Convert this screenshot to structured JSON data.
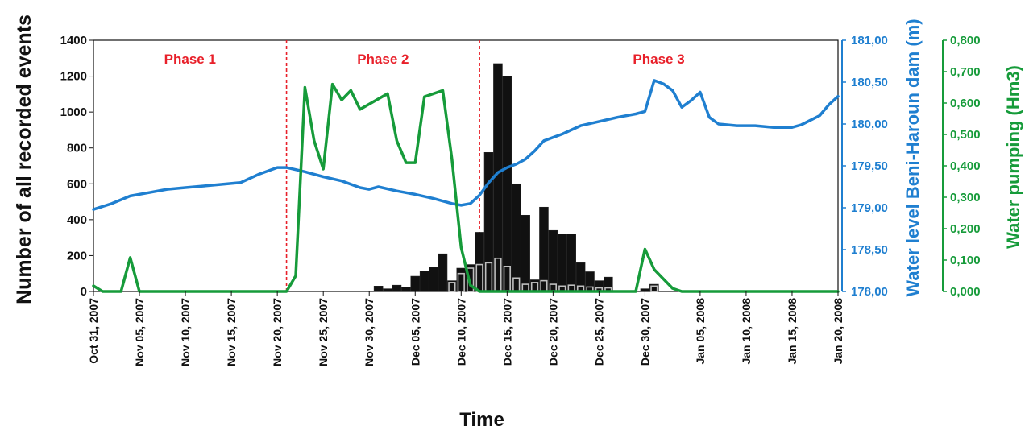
{
  "chart_data": {
    "type": "bar+line",
    "xlabel": "Time",
    "ylabel_left": "Number of all recorded events",
    "ylabel_right_1": "Water level Beni-Haroun dam (m)",
    "ylabel_right_2": "Water pumping (Hm3)",
    "colors": {
      "bars_all": "#111111",
      "bars_secondary": "#ffffff",
      "water_level": "#1f7fd0",
      "pumping": "#169b3a",
      "phase_divider": "#e8202a",
      "axis": "#111111"
    },
    "x_range_dates": [
      "2007-10-31",
      "2008-01-20"
    ],
    "x_tick_labels": [
      "Oct 31, 2007",
      "Nov 05, 2007",
      "Nov 10, 2007",
      "Nov 15, 2007",
      "Nov 20, 2007",
      "Nov 25, 2007",
      "Nov 30, 2007",
      "Dec 05, 2007",
      "Dec 10, 2007",
      "Dec 15, 2007",
      "Dec 20, 2007",
      "Dec 25, 2007",
      "Dec 30, 2007",
      "Jan 05, 2008",
      "Jan 10, 2008",
      "Jan 15, 2008",
      "Jan 20, 2008"
    ],
    "y_left": {
      "min": 0,
      "max": 1400,
      "ticks": [
        "0",
        "200",
        "400",
        "600",
        "800",
        "1000",
        "1200",
        "1400"
      ]
    },
    "y_right_1": {
      "min": 178.0,
      "max": 181.0,
      "ticks": [
        "178,00",
        "178,50",
        "179,00",
        "179,50",
        "180,00",
        "180,50",
        "181,00"
      ]
    },
    "y_right_2": {
      "min": 0,
      "max": 0.8,
      "ticks": [
        "0,000",
        "0,100",
        "0,200",
        "0,300",
        "0,400",
        "0,500",
        "0,600",
        "0,700",
        "0,800"
      ]
    },
    "phases": [
      {
        "label": "Phase 1",
        "start": "2007-10-31",
        "end": "2007-11-21"
      },
      {
        "label": "Phase 2",
        "start": "2007-11-21",
        "end": "2007-12-12"
      },
      {
        "label": "Phase 3",
        "start": "2007-12-12",
        "end": "2008-01-20"
      }
    ],
    "series": [
      {
        "name": "",
        "kind": "bar",
        "color": "#111111",
        "points": [
          [
            "2007-12-01",
            30
          ],
          [
            "2007-12-02",
            15
          ],
          [
            "2007-12-03",
            35
          ],
          [
            "2007-12-04",
            25
          ],
          [
            "2007-12-05",
            85
          ],
          [
            "2007-12-06",
            115
          ],
          [
            "2007-12-07",
            135
          ],
          [
            "2007-12-08",
            210
          ],
          [
            "2007-12-09",
            60
          ],
          [
            "2007-12-10",
            130
          ],
          [
            "2007-12-11",
            150
          ],
          [
            "2007-12-12",
            330
          ],
          [
            "2007-12-13",
            775
          ],
          [
            "2007-12-14",
            1270
          ],
          [
            "2007-12-15",
            1200
          ],
          [
            "2007-12-16",
            600
          ],
          [
            "2007-12-17",
            425
          ],
          [
            "2007-12-18",
            65
          ],
          [
            "2007-12-19",
            470
          ],
          [
            "2007-12-20",
            340
          ],
          [
            "2007-12-21",
            320
          ],
          [
            "2007-12-22",
            320
          ],
          [
            "2007-12-23",
            160
          ],
          [
            "2007-12-24",
            110
          ],
          [
            "2007-12-25",
            60
          ],
          [
            "2007-12-26",
            80
          ],
          [
            "2007-12-30",
            15
          ],
          [
            "2007-12-31",
            40
          ]
        ]
      },
      {
        "name": "",
        "kind": "bar",
        "color": "#ffffff",
        "points": [
          [
            "2007-12-09",
            50
          ],
          [
            "2007-12-10",
            100
          ],
          [
            "2007-12-11",
            130
          ],
          [
            "2007-12-12",
            150
          ],
          [
            "2007-12-13",
            160
          ],
          [
            "2007-12-14",
            185
          ],
          [
            "2007-12-15",
            140
          ],
          [
            "2007-12-16",
            75
          ],
          [
            "2007-12-17",
            40
          ],
          [
            "2007-12-18",
            50
          ],
          [
            "2007-12-19",
            60
          ],
          [
            "2007-12-20",
            40
          ],
          [
            "2007-12-21",
            30
          ],
          [
            "2007-12-22",
            35
          ],
          [
            "2007-12-23",
            30
          ],
          [
            "2007-12-24",
            25
          ],
          [
            "2007-12-25",
            20
          ],
          [
            "2007-12-26",
            20
          ],
          [
            "2007-12-31",
            30
          ]
        ]
      },
      {
        "name": "",
        "kind": "line",
        "axis": "right_1",
        "color": "#1f7fd0",
        "points": [
          [
            "2007-10-31",
            178.98
          ],
          [
            "2007-11-02",
            179.05
          ],
          [
            "2007-11-04",
            179.14
          ],
          [
            "2007-11-06",
            179.18
          ],
          [
            "2007-11-08",
            179.22
          ],
          [
            "2007-11-10",
            179.24
          ],
          [
            "2007-11-12",
            179.26
          ],
          [
            "2007-11-14",
            179.28
          ],
          [
            "2007-11-16",
            179.3
          ],
          [
            "2007-11-18",
            179.4
          ],
          [
            "2007-11-20",
            179.48
          ],
          [
            "2007-11-21",
            179.48
          ],
          [
            "2007-11-23",
            179.43
          ],
          [
            "2007-11-25",
            179.37
          ],
          [
            "2007-11-27",
            179.32
          ],
          [
            "2007-11-29",
            179.24
          ],
          [
            "2007-11-30",
            179.22
          ],
          [
            "2007-12-01",
            179.25
          ],
          [
            "2007-12-03",
            179.2
          ],
          [
            "2007-12-05",
            179.16
          ],
          [
            "2007-12-07",
            179.11
          ],
          [
            "2007-12-09",
            179.05
          ],
          [
            "2007-12-10",
            179.03
          ],
          [
            "2007-12-11",
            179.05
          ],
          [
            "2007-12-12",
            179.15
          ],
          [
            "2007-12-13",
            179.3
          ],
          [
            "2007-12-14",
            179.42
          ],
          [
            "2007-12-15",
            179.48
          ],
          [
            "2007-12-16",
            179.52
          ],
          [
            "2007-12-17",
            179.58
          ],
          [
            "2007-12-18",
            179.68
          ],
          [
            "2007-12-19",
            179.8
          ],
          [
            "2007-12-21",
            179.88
          ],
          [
            "2007-12-23",
            179.98
          ],
          [
            "2007-12-25",
            180.03
          ],
          [
            "2007-12-27",
            180.08
          ],
          [
            "2007-12-29",
            180.12
          ],
          [
            "2007-12-30",
            180.15
          ],
          [
            "2007-12-31",
            180.52
          ],
          [
            "2008-01-01",
            180.48
          ],
          [
            "2008-01-02",
            180.4
          ],
          [
            "2008-01-03",
            180.2
          ],
          [
            "2008-01-04",
            180.28
          ],
          [
            "2008-01-05",
            180.38
          ],
          [
            "2008-01-06",
            180.08
          ],
          [
            "2008-01-07",
            180.0
          ],
          [
            "2008-01-09",
            179.98
          ],
          [
            "2008-01-11",
            179.98
          ],
          [
            "2008-01-13",
            179.96
          ],
          [
            "2008-01-15",
            179.96
          ],
          [
            "2008-01-16",
            179.99
          ],
          [
            "2008-01-18",
            180.1
          ],
          [
            "2008-01-19",
            180.23
          ],
          [
            "2008-01-20",
            180.33
          ]
        ]
      },
      {
        "name": "",
        "kind": "line",
        "axis": "right_2",
        "color": "#169b3a",
        "points": [
          [
            "2007-10-31",
            0.018
          ],
          [
            "2007-11-01",
            0.0
          ],
          [
            "2007-11-03",
            0.0
          ],
          [
            "2007-11-04",
            0.108
          ],
          [
            "2007-11-05",
            0.0
          ],
          [
            "2007-11-21",
            0.0
          ],
          [
            "2007-11-22",
            0.05
          ],
          [
            "2007-11-23",
            0.65
          ],
          [
            "2007-11-24",
            0.48
          ],
          [
            "2007-11-25",
            0.39
          ],
          [
            "2007-11-26",
            0.66
          ],
          [
            "2007-11-27",
            0.61
          ],
          [
            "2007-11-28",
            0.64
          ],
          [
            "2007-11-29",
            0.58
          ],
          [
            "2007-12-02",
            0.63
          ],
          [
            "2007-12-03",
            0.48
          ],
          [
            "2007-12-04",
            0.41
          ],
          [
            "2007-12-05",
            0.41
          ],
          [
            "2007-12-06",
            0.62
          ],
          [
            "2007-12-08",
            0.64
          ],
          [
            "2007-12-09",
            0.42
          ],
          [
            "2007-12-10",
            0.14
          ],
          [
            "2007-12-11",
            0.02
          ],
          [
            "2007-12-12",
            0.0
          ],
          [
            "2007-12-29",
            0.0
          ],
          [
            "2007-12-30",
            0.135
          ],
          [
            "2007-12-31",
            0.07
          ],
          [
            "2008-01-02",
            0.01
          ],
          [
            "2008-01-03",
            0.0
          ],
          [
            "2008-01-20",
            0.0
          ]
        ]
      }
    ]
  }
}
